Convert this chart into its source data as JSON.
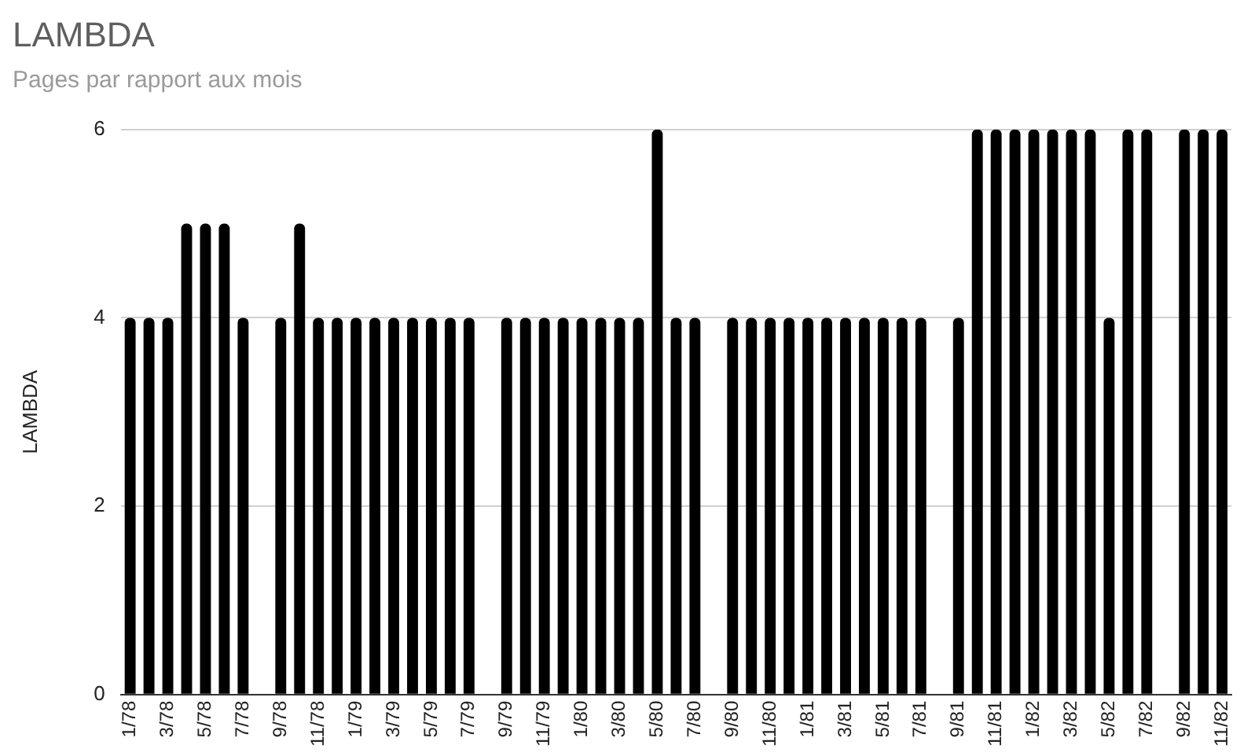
{
  "chart_data": {
    "type": "bar",
    "title": "LAMBDA",
    "subtitle": "Pages par rapport aux mois",
    "ylabel": "LAMBDA",
    "categories": [
      "1/78",
      null,
      "3/78",
      null,
      "5/78",
      null,
      "7/78",
      null,
      "9/78",
      null,
      "11/78",
      null,
      "1/79",
      null,
      "3/79",
      null,
      "5/79",
      null,
      "7/79",
      null,
      "9/79",
      null,
      "11/79",
      null,
      "1/80",
      null,
      "3/80",
      null,
      "5/80",
      null,
      "7/80",
      null,
      "9/80",
      null,
      "11/80",
      null,
      "1/81",
      null,
      "3/81",
      null,
      "5/81",
      null,
      "7/81",
      null,
      "9/81",
      null,
      "11/81",
      null,
      "1/82",
      null,
      "3/82",
      null,
      "5/82",
      null,
      "7/82",
      null,
      "9/82",
      null,
      "11/82"
    ],
    "values": [
      4,
      4,
      4,
      5,
      5,
      5,
      4,
      null,
      4,
      5,
      4,
      4,
      4,
      4,
      4,
      4,
      4,
      4,
      4,
      null,
      4,
      4,
      4,
      4,
      4,
      4,
      4,
      4,
      6,
      4,
      4,
      null,
      4,
      4,
      4,
      4,
      4,
      4,
      4,
      4,
      4,
      4,
      4,
      null,
      4,
      6,
      6,
      6,
      6,
      6,
      6,
      6,
      4,
      6,
      6,
      null,
      6,
      6,
      6
    ],
    "color": "#000000",
    "ylim": [
      0,
      6
    ],
    "yticks": [
      0,
      2,
      4,
      6
    ],
    "grid": "y",
    "legend": false
  }
}
